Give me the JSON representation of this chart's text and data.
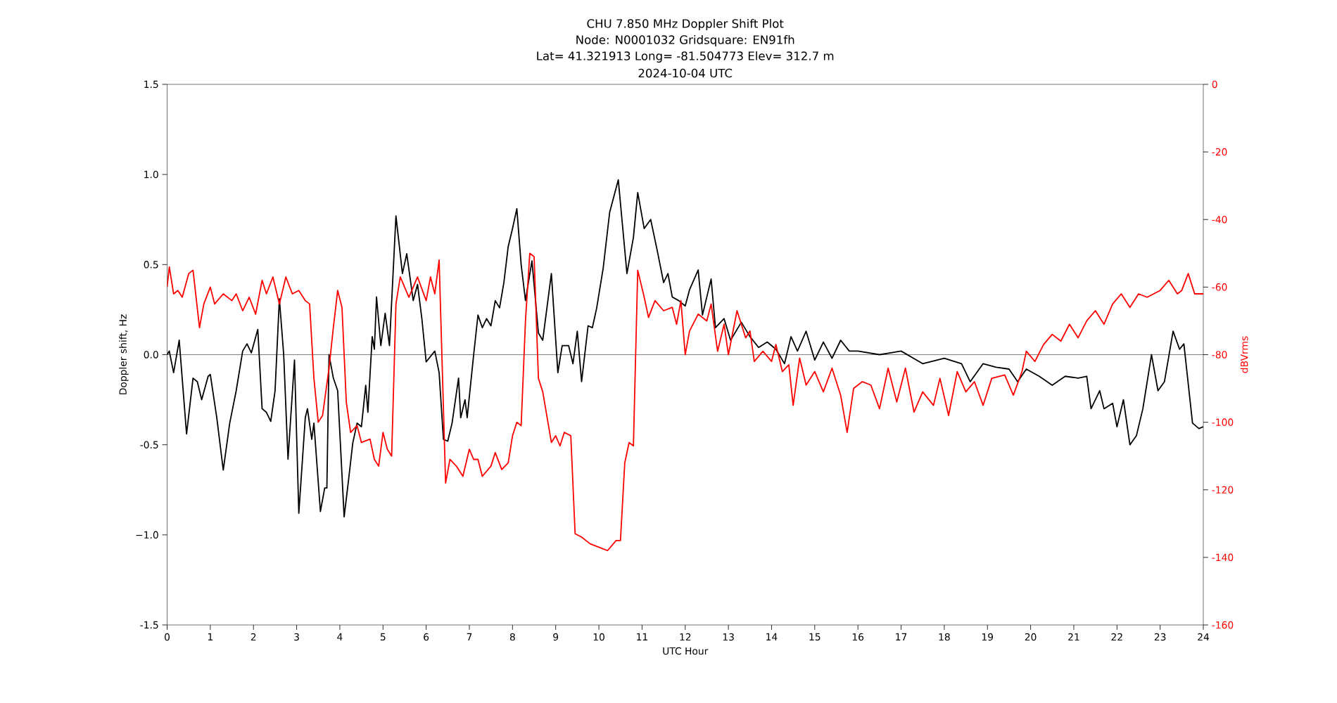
{
  "chart_data": {
    "type": "line",
    "title": "CHU 7.850 MHz Doppler Shift Plot",
    "subtitle": "Node:  N0001032     Gridsquare:  EN91fh",
    "annotations": [
      "Lat= 41.321913    Long= -81.504773    Elev= 312.7 m",
      "2024-10-04  UTC"
    ],
    "xlabel": "UTC Hour",
    "ylabel": "Doppler shift, Hz",
    "y2label": "dBVrms",
    "xlim": [
      0,
      24
    ],
    "xticks": [
      0,
      1,
      2,
      3,
      4,
      5,
      6,
      7,
      8,
      9,
      10,
      11,
      12,
      13,
      14,
      15,
      16,
      17,
      18,
      19,
      20,
      21,
      22,
      23,
      24
    ],
    "ylim": [
      -1.5,
      1.5
    ],
    "yticks": [
      -1.5,
      {
        "value": -1,
        "label": "−1.0"
      },
      -0.5,
      {
        "value": 0,
        "label": "0.0"
      },
      0.5,
      {
        "value": 1,
        "label": "1.0"
      },
      1.5
    ],
    "y2lim": [
      -160,
      0
    ],
    "y2ticks": [
      -160,
      -140,
      -120,
      -100,
      -80,
      -60,
      -40,
      -20,
      0
    ],
    "ref_lines": [
      {
        "axis": "y",
        "value": 0,
        "color": "#808080"
      }
    ],
    "series": [
      {
        "color": "#000000",
        "x": [
          0.0,
          0.05,
          0.15,
          0.28,
          0.45,
          0.6,
          0.7,
          0.8,
          0.95,
          1.0,
          1.15,
          1.3,
          1.45,
          1.6,
          1.75,
          1.85,
          1.95,
          2.1,
          2.2,
          2.3,
          2.4,
          2.5,
          2.6,
          2.7,
          2.8,
          2.95,
          3.05,
          3.2,
          3.25,
          3.35,
          3.4,
          3.55,
          3.65,
          3.7,
          3.75,
          3.85,
          3.95,
          4.1,
          4.2,
          4.3,
          4.4,
          4.5,
          4.6,
          4.65,
          4.75,
          4.8,
          4.85,
          4.95,
          5.05,
          5.15,
          5.3,
          5.45,
          5.55,
          5.7,
          5.8,
          5.9,
          6.0,
          6.1,
          6.2,
          6.3,
          6.4,
          6.5,
          6.6,
          6.75,
          6.8,
          6.9,
          6.95,
          7.1,
          7.2,
          7.3,
          7.4,
          7.5,
          7.6,
          7.7,
          7.8,
          7.9,
          8.0,
          8.1,
          8.2,
          8.3,
          8.45,
          8.6,
          8.7,
          8.9,
          9.05,
          9.15,
          9.3,
          9.4,
          9.5,
          9.6,
          9.75,
          9.85,
          9.95,
          10.1,
          10.25,
          10.45,
          10.65,
          10.8,
          10.9,
          11.05,
          11.2,
          11.35,
          11.5,
          11.6,
          11.7,
          11.85,
          12.0,
          12.1,
          12.3,
          12.4,
          12.6,
          12.7,
          12.9,
          13.05,
          13.3,
          13.5,
          13.7,
          13.9,
          14.1,
          14.3,
          14.45,
          14.6,
          14.8,
          15.0,
          15.2,
          15.4,
          15.6,
          15.8,
          16.0,
          16.5,
          17.0,
          17.5,
          18.0,
          18.4,
          18.6,
          18.9,
          19.2,
          19.5,
          19.7,
          19.9,
          20.2,
          20.5,
          20.8,
          21.1,
          21.3,
          21.4,
          21.6,
          21.7,
          21.9,
          22.0,
          22.15,
          22.3,
          22.45,
          22.6,
          22.8,
          22.95,
          23.1,
          23.3,
          23.45,
          23.55,
          23.75,
          23.9,
          24.0
        ],
        "values": [
          0.0,
          0.02,
          -0.1,
          0.08,
          -0.44,
          -0.13,
          -0.15,
          -0.25,
          -0.12,
          -0.11,
          -0.35,
          -0.64,
          -0.38,
          -0.2,
          0.02,
          0.06,
          0.01,
          0.14,
          -0.3,
          -0.32,
          -0.37,
          -0.2,
          0.31,
          0.0,
          -0.58,
          -0.03,
          -0.88,
          -0.35,
          -0.3,
          -0.47,
          -0.38,
          -0.87,
          -0.74,
          -0.74,
          0.0,
          -0.13,
          -0.2,
          -0.9,
          -0.7,
          -0.49,
          -0.38,
          -0.4,
          -0.17,
          -0.32,
          0.1,
          0.03,
          0.32,
          0.05,
          0.23,
          0.05,
          0.77,
          0.45,
          0.56,
          0.3,
          0.39,
          0.2,
          -0.04,
          -0.01,
          0.02,
          -0.1,
          -0.47,
          -0.48,
          -0.38,
          -0.13,
          -0.35,
          -0.25,
          -0.35,
          0.0,
          0.22,
          0.15,
          0.2,
          0.16,
          0.3,
          0.26,
          0.4,
          0.6,
          0.7,
          0.81,
          0.5,
          0.3,
          0.52,
          0.12,
          0.08,
          0.45,
          -0.1,
          0.05,
          0.05,
          -0.05,
          0.13,
          -0.15,
          0.16,
          0.15,
          0.26,
          0.48,
          0.79,
          0.97,
          0.45,
          0.65,
          0.9,
          0.7,
          0.75,
          0.58,
          0.4,
          0.45,
          0.32,
          0.3,
          0.27,
          0.36,
          0.47,
          0.22,
          0.42,
          0.15,
          0.2,
          0.08,
          0.18,
          0.1,
          0.04,
          0.07,
          0.03,
          -0.05,
          0.1,
          0.02,
          0.13,
          -0.03,
          0.07,
          -0.02,
          0.08,
          0.02,
          0.02,
          0.0,
          0.02,
          -0.05,
          -0.02,
          -0.05,
          -0.15,
          -0.05,
          -0.07,
          -0.08,
          -0.15,
          -0.08,
          -0.12,
          -0.17,
          -0.12,
          -0.13,
          -0.12,
          -0.3,
          -0.2,
          -0.3,
          -0.27,
          -0.4,
          -0.25,
          -0.5,
          -0.45,
          -0.3,
          0.0,
          -0.2,
          -0.15,
          0.13,
          0.03,
          0.06,
          -0.38,
          -0.41,
          -0.4
        ]
      },
      {
        "color": "#ff0000",
        "axis": "y2",
        "x": [
          0.0,
          0.05,
          0.15,
          0.25,
          0.35,
          0.5,
          0.6,
          0.75,
          0.85,
          1.0,
          1.1,
          1.3,
          1.5,
          1.6,
          1.75,
          1.9,
          2.05,
          2.2,
          2.3,
          2.45,
          2.6,
          2.75,
          2.9,
          3.05,
          3.2,
          3.3,
          3.4,
          3.5,
          3.6,
          3.75,
          3.85,
          3.95,
          4.05,
          4.15,
          4.25,
          4.4,
          4.5,
          4.7,
          4.8,
          4.9,
          5.0,
          5.1,
          5.2,
          5.3,
          5.4,
          5.5,
          5.6,
          5.8,
          6.0,
          6.1,
          6.2,
          6.3,
          6.45,
          6.55,
          6.7,
          6.85,
          7.0,
          7.1,
          7.2,
          7.3,
          7.5,
          7.6,
          7.75,
          7.9,
          8.0,
          8.1,
          8.2,
          8.3,
          8.4,
          8.5,
          8.6,
          8.7,
          8.9,
          9.0,
          9.1,
          9.2,
          9.35,
          9.45,
          9.6,
          9.8,
          10.0,
          10.2,
          10.4,
          10.5,
          10.6,
          10.7,
          10.8,
          10.9,
          11.05,
          11.15,
          11.3,
          11.5,
          11.7,
          11.8,
          11.9,
          12.0,
          12.1,
          12.3,
          12.5,
          12.6,
          12.75,
          12.9,
          13.0,
          13.2,
          13.4,
          13.5,
          13.6,
          13.8,
          14.0,
          14.1,
          14.25,
          14.4,
          14.5,
          14.65,
          14.8,
          15.0,
          15.2,
          15.4,
          15.6,
          15.75,
          15.9,
          16.1,
          16.3,
          16.5,
          16.7,
          16.9,
          17.1,
          17.3,
          17.5,
          17.75,
          17.9,
          18.1,
          18.3,
          18.5,
          18.7,
          18.9,
          19.1,
          19.4,
          19.6,
          19.8,
          19.9,
          20.1,
          20.3,
          20.5,
          20.7,
          20.9,
          21.1,
          21.3,
          21.5,
          21.7,
          21.9,
          22.1,
          22.3,
          22.5,
          22.7,
          23.0,
          23.2,
          23.4,
          23.5,
          23.65,
          23.8,
          24.0
        ],
        "values": [
          -60,
          -54,
          -62,
          -61,
          -63,
          -56,
          -55,
          -72,
          -65,
          -60,
          -65,
          -62,
          -64,
          -62,
          -67,
          -63,
          -68,
          -58,
          -62,
          -57,
          -65,
          -57,
          -62,
          -61,
          -64,
          -65,
          -87,
          -100,
          -98,
          -84,
          -72,
          -61,
          -66,
          -94,
          -103,
          -101,
          -106,
          -105,
          -111,
          -113,
          -103,
          -108,
          -110,
          -65,
          -57,
          -60,
          -63,
          -57,
          -64,
          -57,
          -62,
          -52,
          -118,
          -111,
          -113,
          -116,
          -108,
          -111,
          -111,
          -116,
          -113,
          -109,
          -114,
          -112,
          -104,
          -100,
          -101,
          -70,
          -50,
          -51,
          -87,
          -91,
          -106,
          -104,
          -107,
          -103,
          -104,
          -133,
          -134,
          -136,
          -137,
          -138,
          -135,
          -135,
          -112,
          -106,
          -107,
          -55,
          -63,
          -69,
          -64,
          -67,
          -66,
          -71,
          -64,
          -80,
          -73,
          -68,
          -70,
          -65,
          -79,
          -71,
          -80,
          -67,
          -75,
          -73,
          -82,
          -79,
          -82,
          -77,
          -85,
          -83,
          -95,
          -81,
          -89,
          -85,
          -91,
          -84,
          -92,
          -103,
          -90,
          -88,
          -89,
          -96,
          -84,
          -94,
          -84,
          -97,
          -91,
          -95,
          -87,
          -98,
          -85,
          -91,
          -88,
          -95,
          -87,
          -86,
          -92,
          -85,
          -79,
          -82,
          -77,
          -74,
          -76,
          -71,
          -75,
          -70,
          -67,
          -71,
          -65,
          -62,
          -66,
          -62,
          -63,
          -61,
          -58,
          -62,
          -61,
          -56,
          -62,
          -62
        ]
      }
    ]
  }
}
